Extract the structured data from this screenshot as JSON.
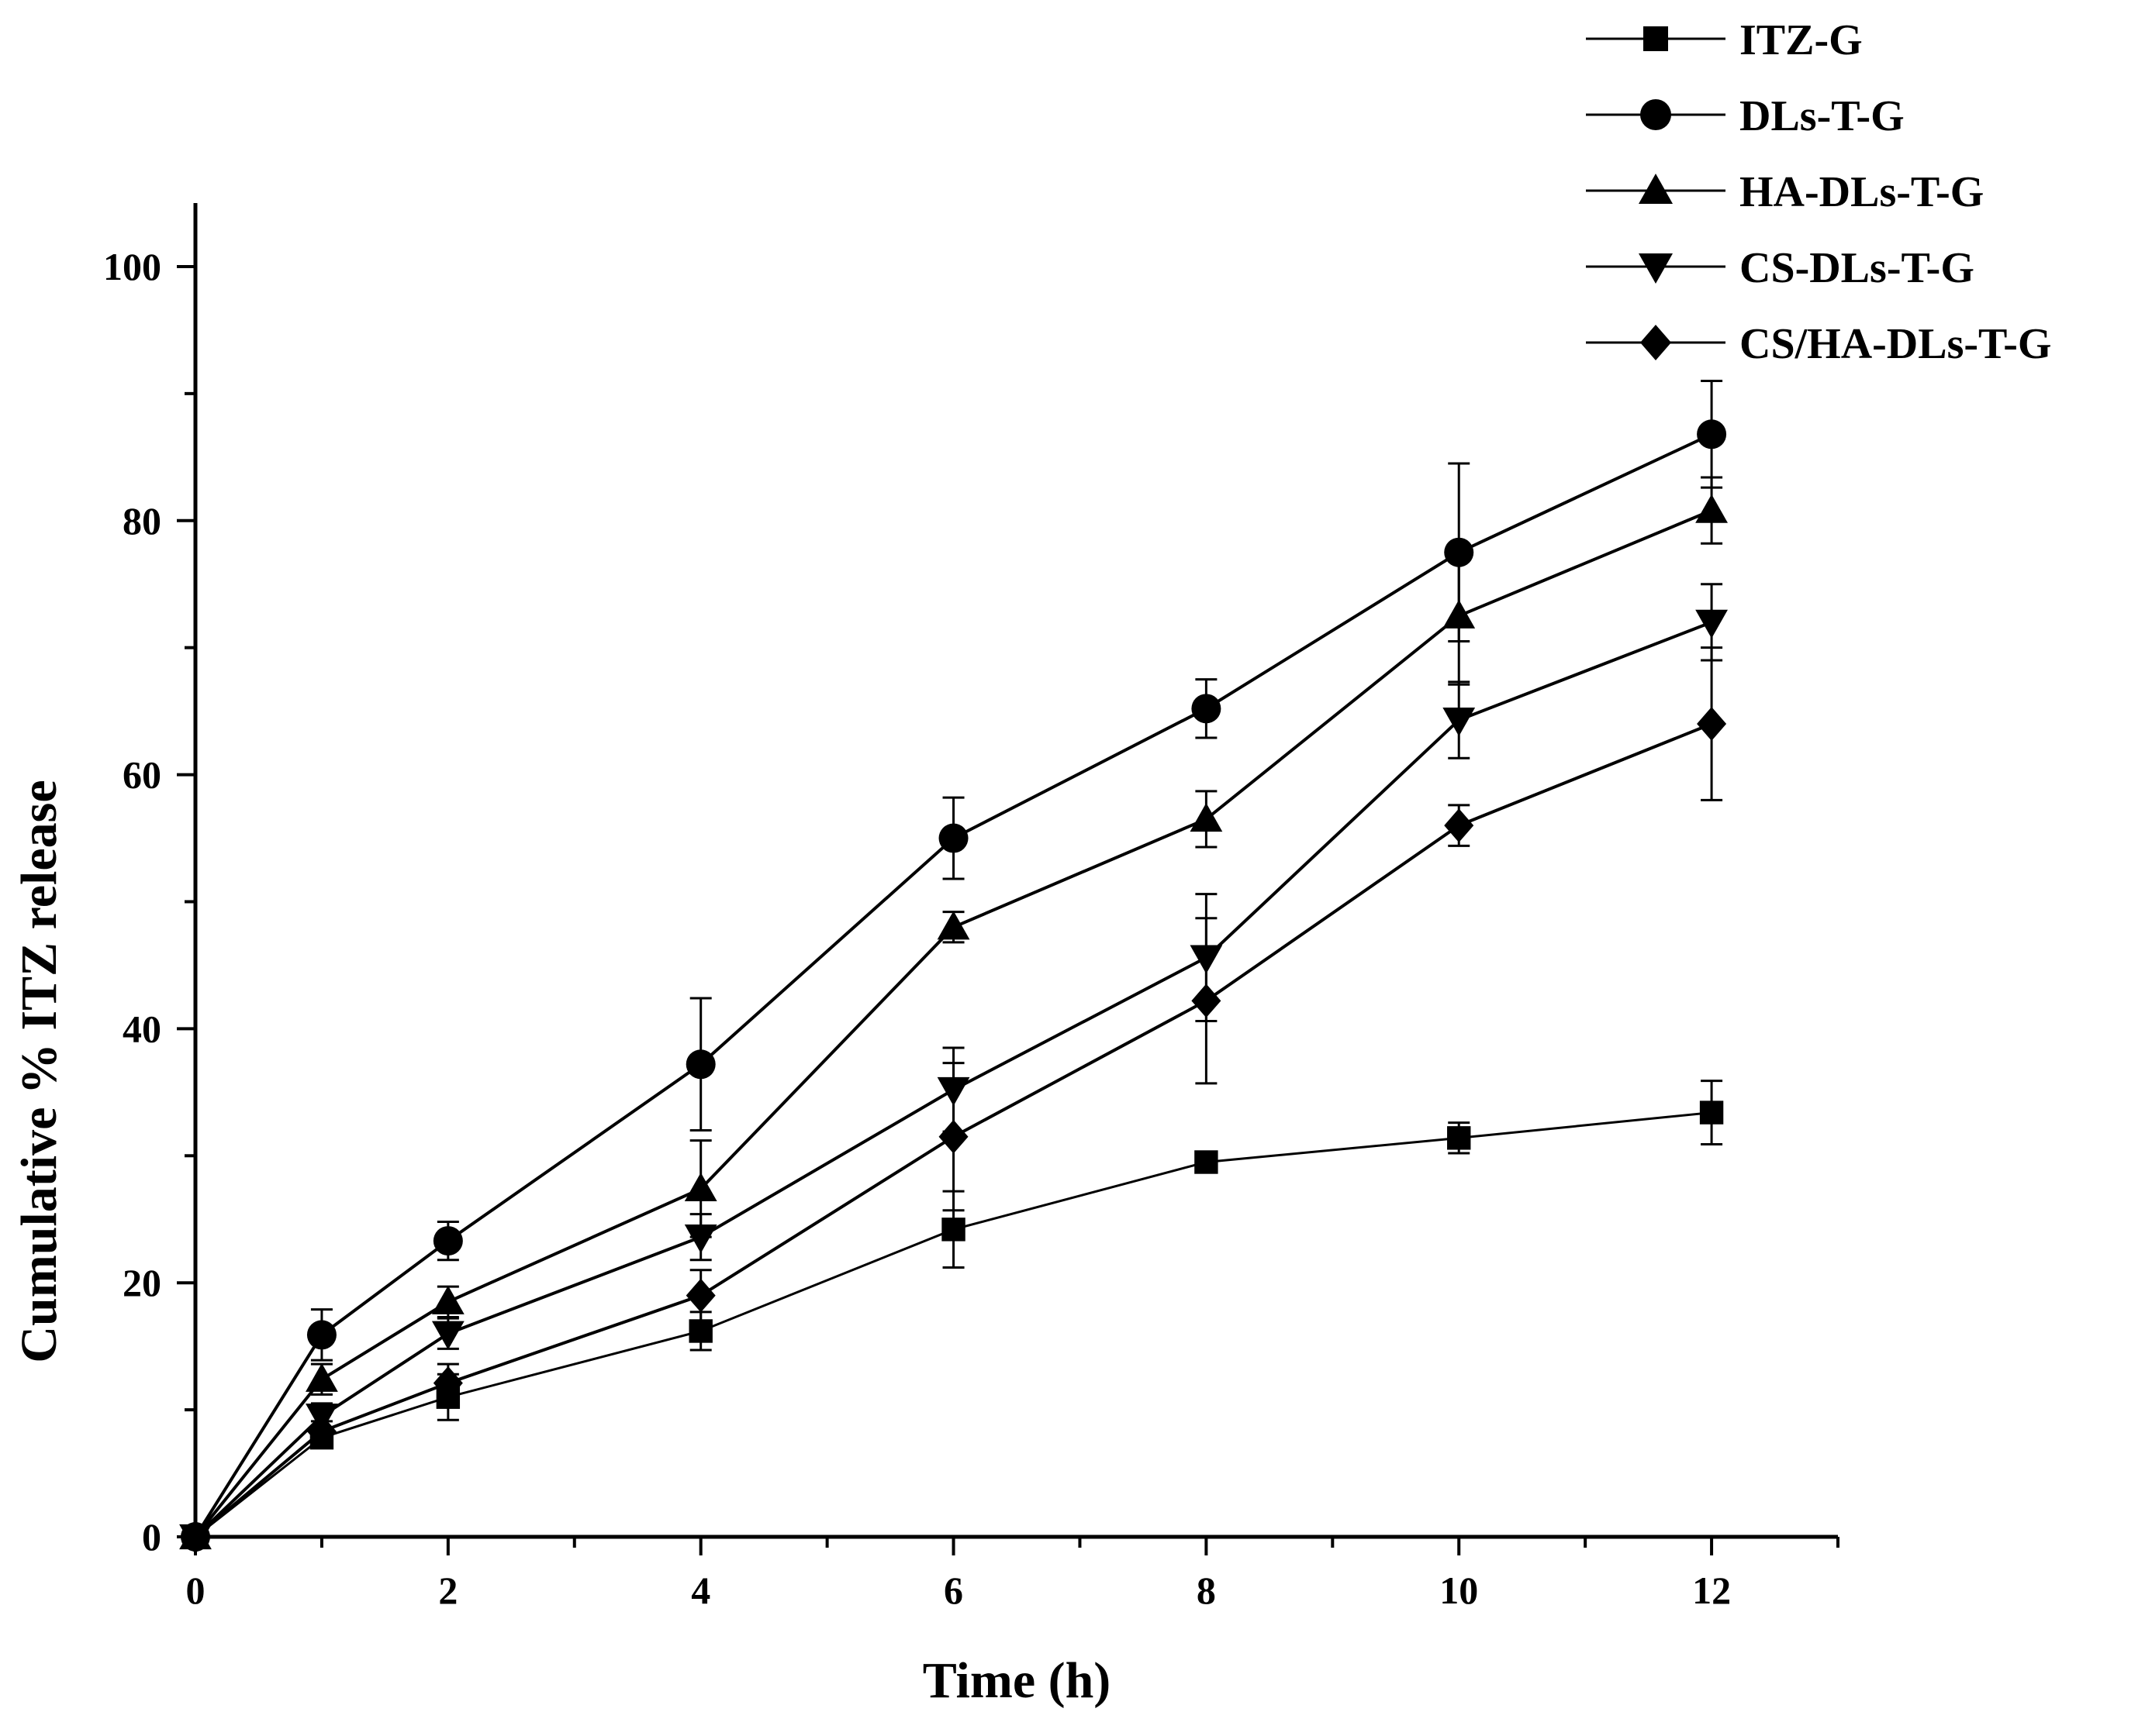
{
  "chart_data": {
    "type": "line",
    "title": "",
    "xlabel": "Time (h)",
    "ylabel": "Cumulative % ITZ release",
    "xlim": [
      0,
      13
    ],
    "ylim": [
      0,
      105
    ],
    "xticks": [
      0,
      2,
      4,
      6,
      8,
      10,
      12
    ],
    "yticks": [
      0,
      20,
      40,
      60,
      80,
      100
    ],
    "x": [
      0,
      1,
      2,
      4,
      6,
      8,
      10,
      12
    ],
    "legend_position": "top-right",
    "color": "#000000",
    "series": [
      {
        "name": "ITZ-G",
        "marker": "square",
        "values": [
          0,
          7.8,
          11.0,
          16.2,
          24.2,
          29.5,
          31.4,
          33.4
        ],
        "errors": [
          0,
          0.8,
          1.8,
          1.5,
          3.0,
          0.5,
          1.2,
          2.5
        ]
      },
      {
        "name": "DLs-T-G",
        "marker": "circle",
        "values": [
          0,
          15.9,
          23.3,
          37.2,
          55.0,
          65.2,
          77.5,
          86.8
        ],
        "errors": [
          0,
          2.0,
          1.5,
          5.2,
          3.2,
          2.3,
          7.0,
          4.2
        ]
      },
      {
        "name": "HA-DLs-T-G",
        "marker": "triangle-up",
        "values": [
          0,
          12.4,
          18.5,
          27.4,
          48.0,
          56.5,
          72.5,
          80.8
        ],
        "errors": [
          0,
          1.2,
          1.2,
          3.8,
          1.2,
          2.2,
          5.4,
          2.6
        ]
      },
      {
        "name": "CS-DLs-T-G",
        "marker": "triangle-down",
        "values": [
          0,
          9.5,
          16.0,
          23.6,
          35.2,
          45.6,
          64.3,
          72.0
        ],
        "errors": [
          0,
          1.0,
          1.2,
          1.8,
          3.3,
          5.0,
          3.0,
          3.0
        ]
      },
      {
        "name": "CS/HA-DLs-T-G",
        "marker": "diamond",
        "values": [
          0,
          8.3,
          12.1,
          19.0,
          31.5,
          42.2,
          56.0,
          64.0
        ],
        "errors": [
          0,
          0.8,
          1.5,
          2.0,
          5.8,
          6.5,
          1.6,
          6.0
        ]
      }
    ]
  }
}
